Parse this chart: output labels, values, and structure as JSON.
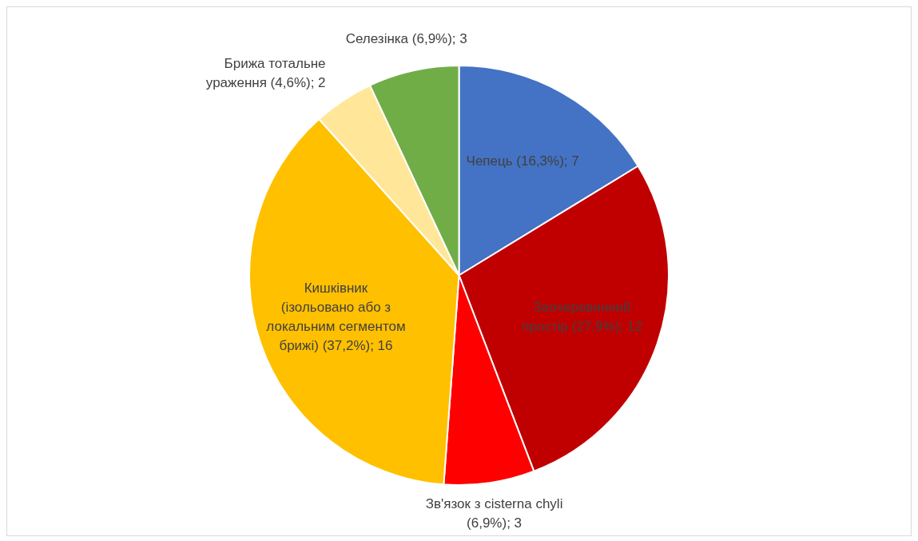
{
  "chart_data": {
    "type": "pie",
    "categories": [
      "Чепець",
      "Заочеревинний простір",
      "Зв'язок з cisterna chyli",
      "Кишківник (ізольовано або з локальним сегментом брижі)",
      "Брижа тотальне ураження",
      "Селезінка"
    ],
    "values": [
      7,
      12,
      3,
      16,
      2,
      3
    ],
    "colors": [
      "#4472c4",
      "#c00000",
      "#ff0000",
      "#ffc000",
      "#ffe699",
      "#70ad47"
    ],
    "value_labels": [
      "(16,3%); 7",
      "(27,9%); 12",
      "(6,9%); 3",
      "(37,2%); 16",
      "(4,6%); 2",
      "(6,9%); 3"
    ],
    "legend": false
  }
}
